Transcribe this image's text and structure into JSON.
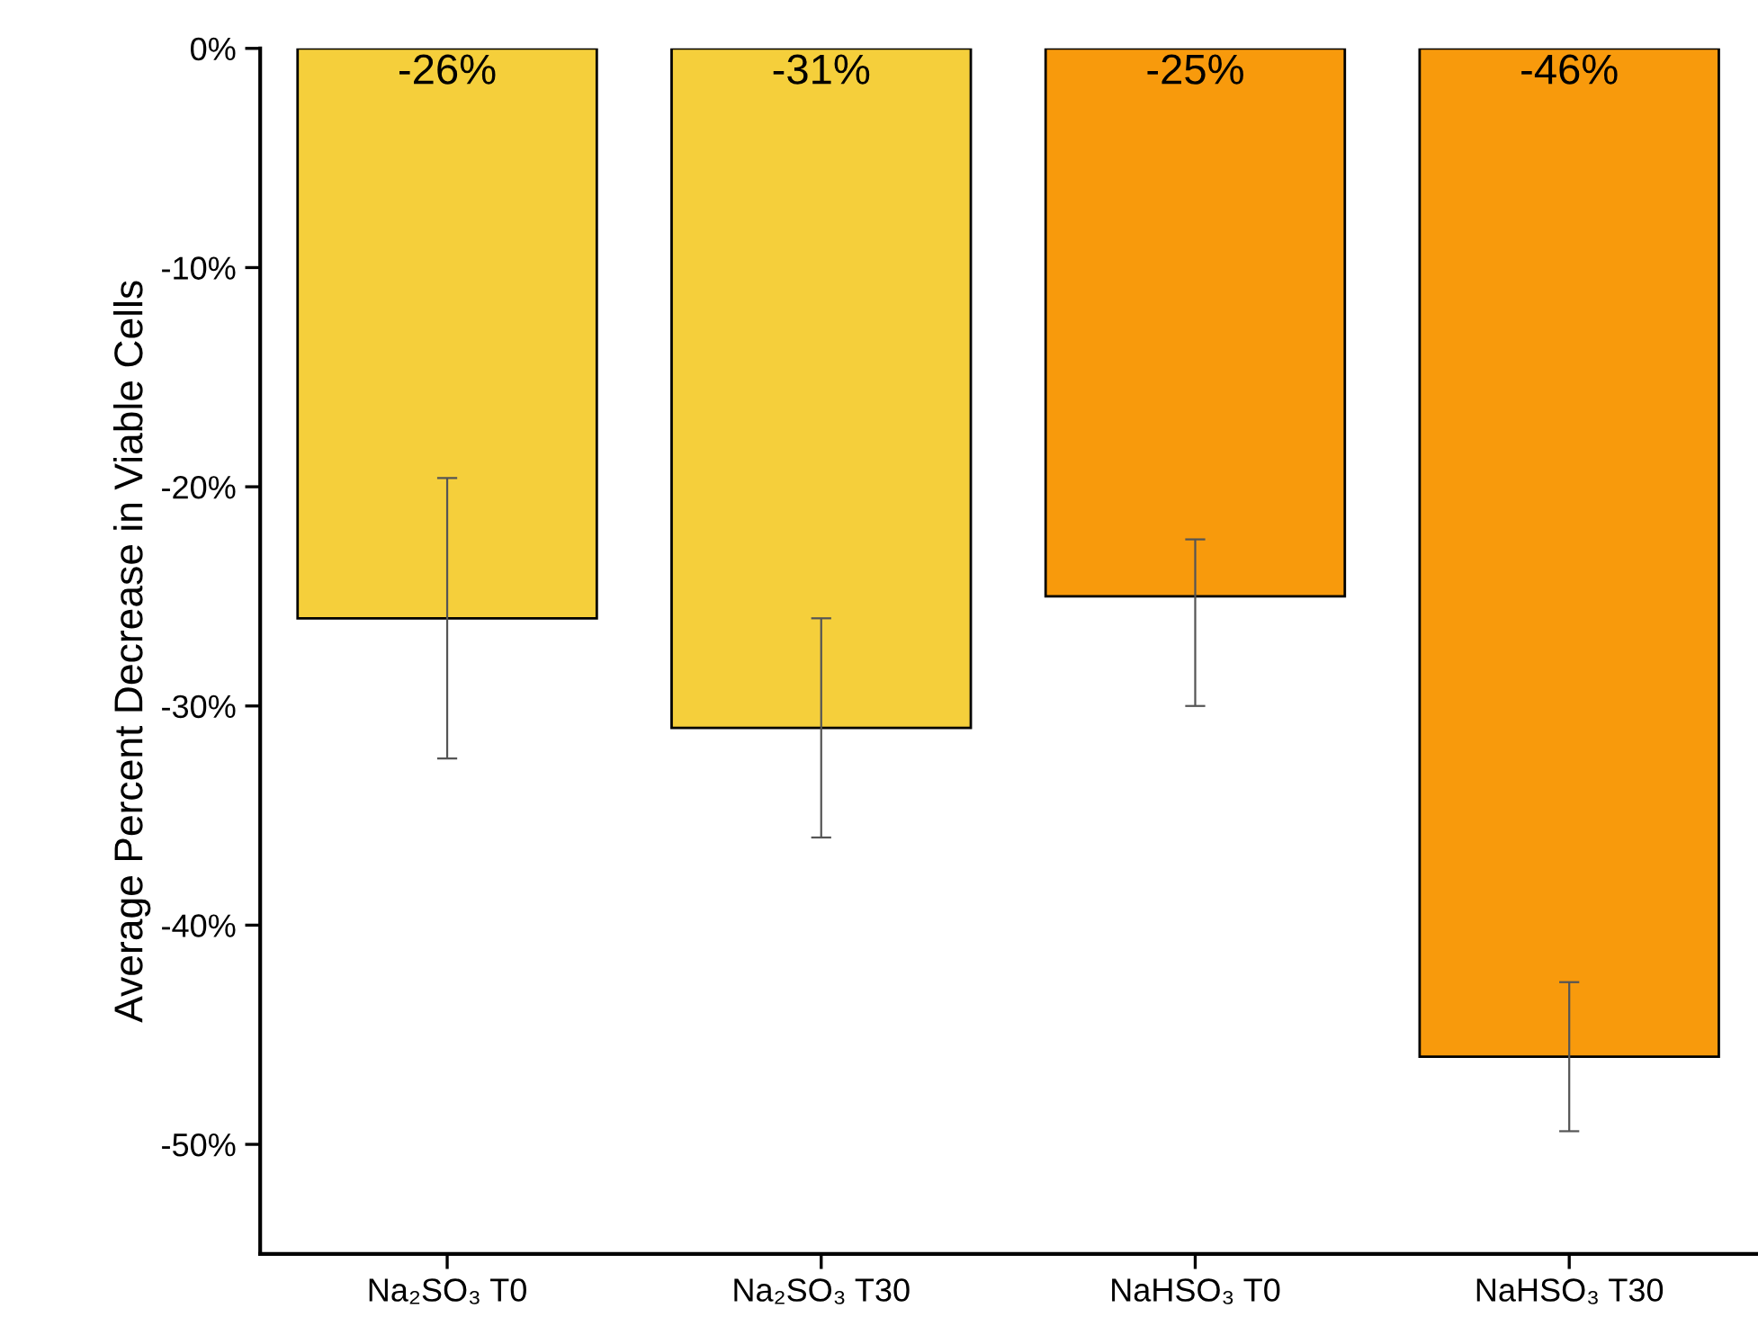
{
  "chart_data": {
    "type": "bar",
    "ylabel": "Average Percent Decrease in Viable Cells",
    "categories": [
      "Na₂SO₃ T0",
      "Na₂SO₃ T30",
      "NaHSO₃ T0",
      "NaHSO₃ T30"
    ],
    "values": [
      -26,
      -31,
      -25,
      -46
    ],
    "colors": [
      "#f5cf3b",
      "#f5cf3b",
      "#f89a0c",
      "#f89a0c"
    ],
    "errors": [
      6.4,
      5,
      [
        -30,
        -22.4
      ],
      3.4
    ],
    "value_labels": [
      "-26%",
      "-31%",
      "-25%",
      "-46%"
    ],
    "ylim": [
      -55,
      0
    ],
    "yticks": [
      {
        "value": 0,
        "label": "0%"
      },
      {
        "value": -10,
        "label": "-10%"
      },
      {
        "value": -20,
        "label": "-20%"
      },
      {
        "value": -30,
        "label": "-30%"
      },
      {
        "value": -40,
        "label": "-40%"
      },
      {
        "value": -50,
        "label": "-50%"
      }
    ],
    "grid": false,
    "legend": false
  }
}
